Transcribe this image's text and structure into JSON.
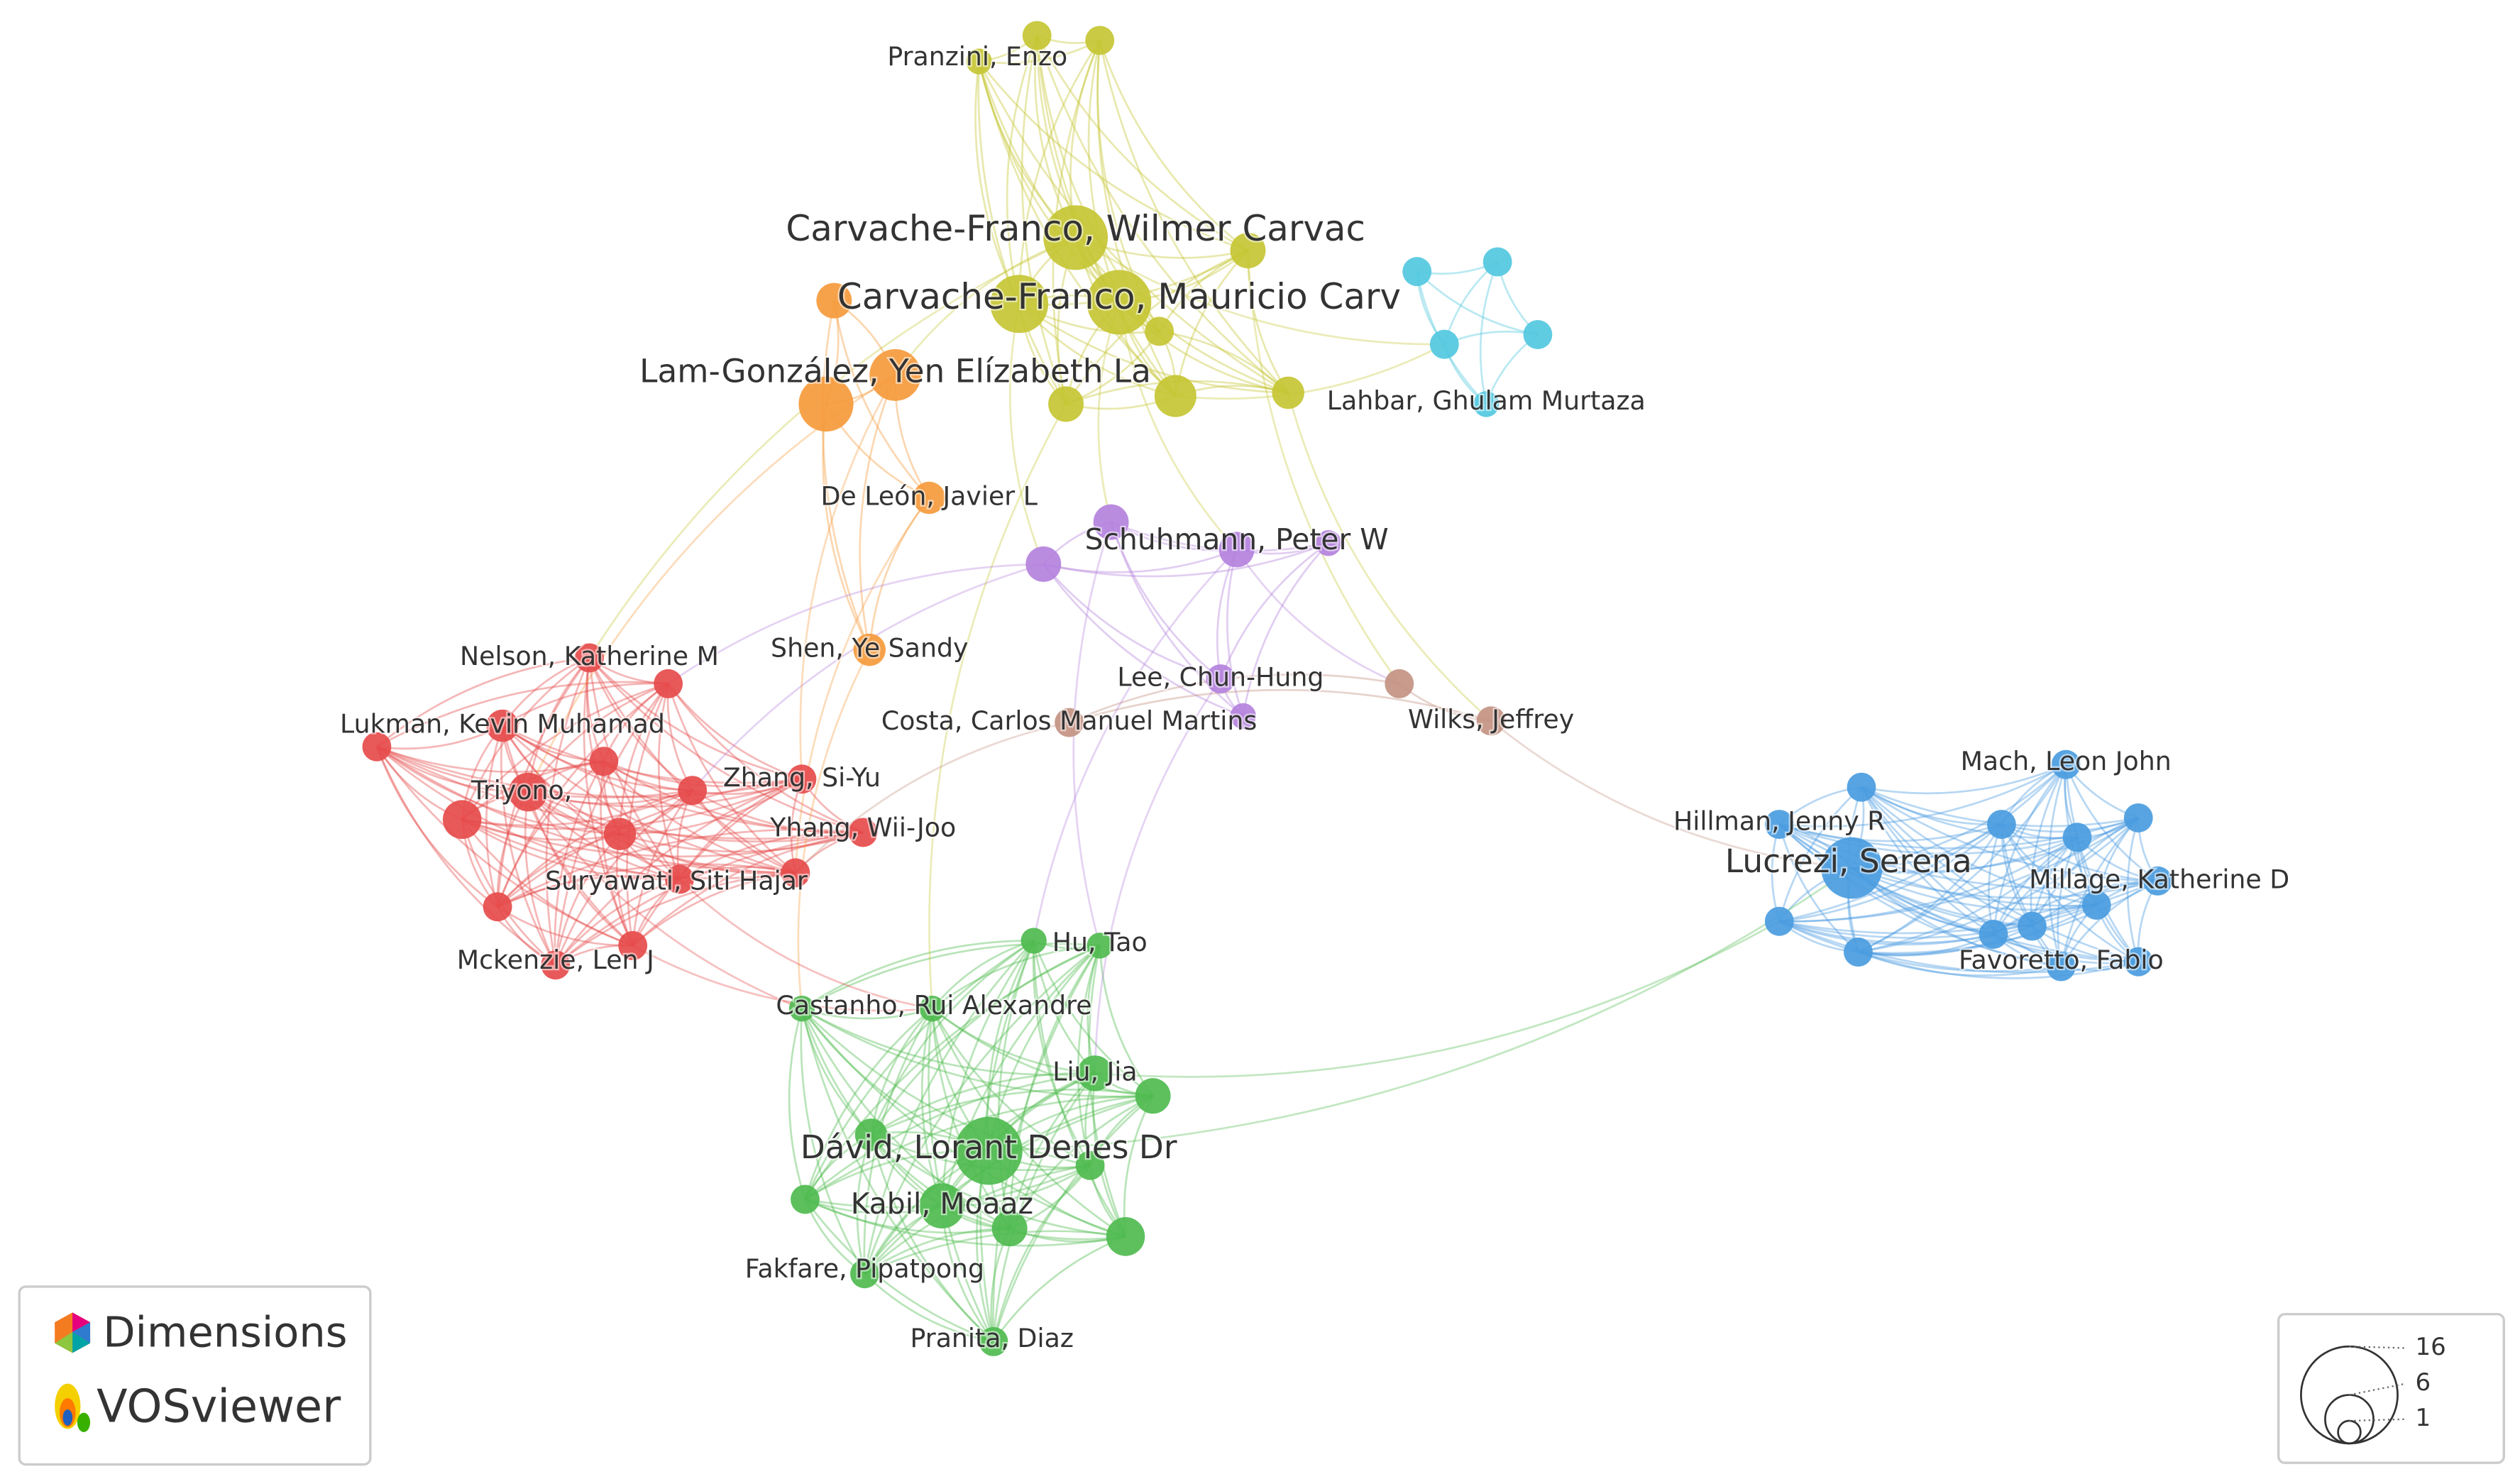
{
  "nodes": [
    {
      "label": "Pranzini, Enzo"
    },
    {
      "label": "Carvache-Franco, Wilmer Carvac"
    },
    {
      "label": "Carvache-Franco, Mauricio Carv"
    },
    {
      "label": "Lam-González, Yen Elízabeth La"
    },
    {
      "label": "Lahbar, Ghulam Murtaza"
    },
    {
      "label": "De León, Javier L"
    },
    {
      "label": "Schuhmann, Peter W"
    },
    {
      "label": "Shen, Ye Sandy"
    },
    {
      "label": "Nelson, Katherine M"
    },
    {
      "label": "Lee, Chun-Hung"
    },
    {
      "label": "Lukman, Kevin Muhamad"
    },
    {
      "label": "Costa, Carlos Manuel Martins"
    },
    {
      "label": "Wilks, Jeffrey"
    },
    {
      "label": "Triyono,"
    },
    {
      "label": "Zhang, Si-Yu"
    },
    {
      "label": "Yhang, Wii-Joo"
    },
    {
      "label": "Suryawati, Siti Hajar"
    },
    {
      "label": "Mckenzie, Len J"
    },
    {
      "label": "Hu, Tao"
    },
    {
      "label": "Castanho, Rui Alexandre"
    },
    {
      "label": "Liu, Jia"
    },
    {
      "label": "Dávid, Lorant Denes Dr"
    },
    {
      "label": "Kabil, Moaaz"
    },
    {
      "label": "Fakfare, Pipatpong"
    },
    {
      "label": "Pranita, Diaz"
    },
    {
      "label": "Mach, Leon John"
    },
    {
      "label": "Hillman, Jenny R"
    },
    {
      "label": "Lucrezi, Serena"
    },
    {
      "label": "Millage, Katherine D"
    },
    {
      "label": "Favoretto, Fabio"
    }
  ],
  "logos": {
    "top": "Dimensions",
    "bottom": "VOSviewer"
  },
  "legend": {
    "values": [
      16,
      6,
      1
    ]
  }
}
